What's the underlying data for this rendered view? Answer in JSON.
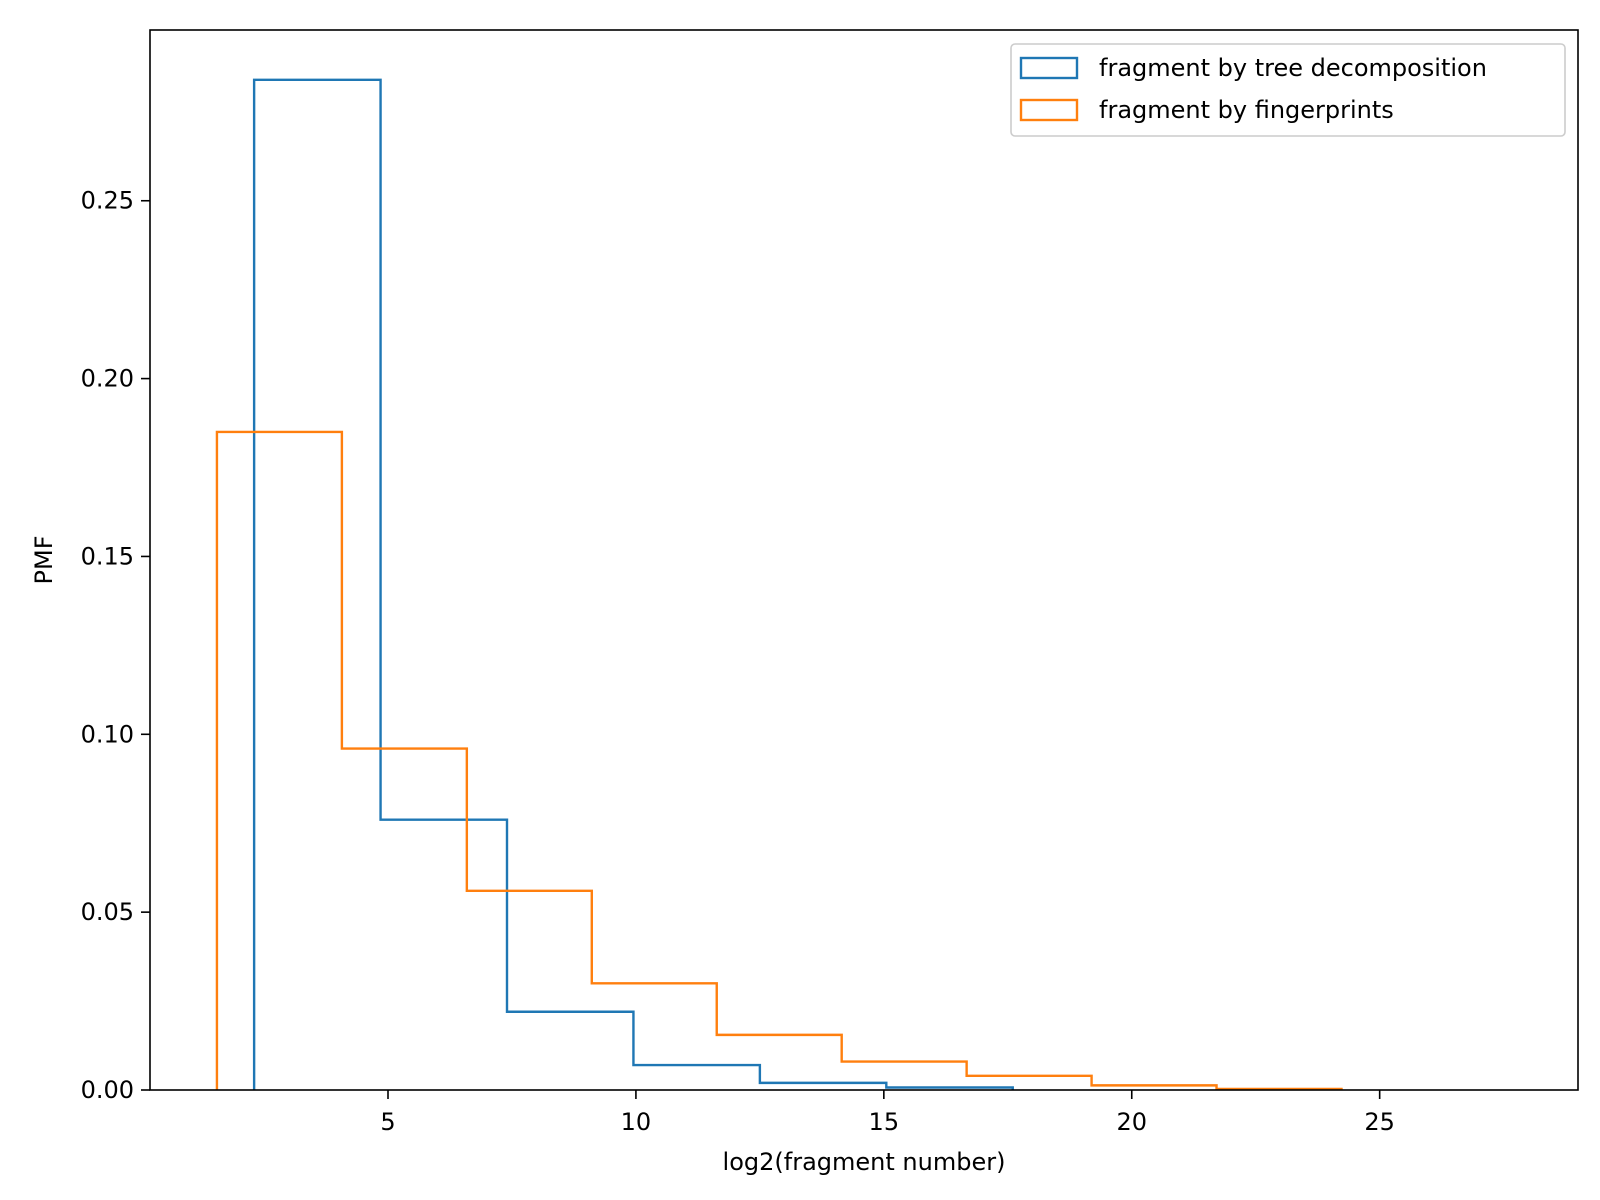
{
  "chart_data": {
    "type": "histogram",
    "title": "",
    "xlabel": "log2(fragment number)",
    "ylabel": "PMF",
    "xlim": [
      0.2,
      29.0
    ],
    "ylim": [
      0,
      0.298
    ],
    "xticks": [
      5,
      10,
      15,
      20,
      25
    ],
    "yticks": [
      0.0,
      0.05,
      0.1,
      0.15,
      0.2,
      0.25
    ],
    "ytick_labels": [
      "0.00",
      "0.05",
      "0.10",
      "0.15",
      "0.20",
      "0.25"
    ],
    "grid": false,
    "legend_position": "top-right",
    "series": [
      {
        "name": "fragment by tree decomposition",
        "color": "#1f77b4",
        "bin_edges": [
          2.3,
          4.85,
          7.4,
          9.95,
          12.5,
          15.05,
          17.6
        ],
        "values": [
          0.284,
          0.076,
          0.022,
          0.007,
          0.002,
          0.0007
        ]
      },
      {
        "name": "fragment by fingerprints",
        "color": "#ff7f0e",
        "bin_edges": [
          1.55,
          4.07,
          6.59,
          9.11,
          11.63,
          14.15,
          16.67,
          19.19,
          21.71,
          24.23
        ],
        "values": [
          0.185,
          0.096,
          0.056,
          0.03,
          0.0155,
          0.008,
          0.004,
          0.0013,
          0.0003
        ]
      }
    ]
  }
}
